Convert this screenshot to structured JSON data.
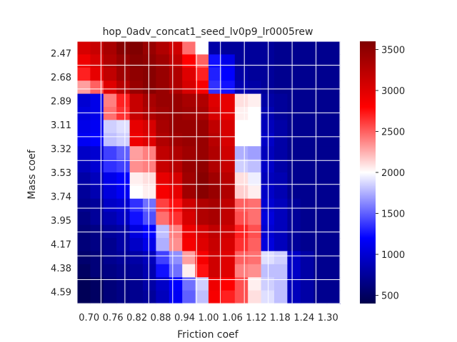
{
  "chart_data": {
    "type": "heatmap",
    "title": "hop_0adv_concat1_seed_lv0p9_lr0005rew",
    "xlabel": "Friction coef",
    "ylabel": "Mass coef",
    "x_ticks": [
      "0.70",
      "0.76",
      "0.82",
      "0.88",
      "0.94",
      "1.00",
      "1.06",
      "1.12",
      "1.18",
      "1.24",
      "1.30"
    ],
    "y_ticks": [
      "2.47",
      "2.68",
      "2.89",
      "3.11",
      "3.32",
      "3.53",
      "3.74",
      "3.95",
      "4.17",
      "4.38",
      "4.59"
    ],
    "colormap": "seismic",
    "colorbar_range": [
      400,
      3600
    ],
    "colorbar_ticks": [
      "500",
      "1000",
      "1500",
      "2000",
      "2500",
      "3000",
      "3500"
    ],
    "grid": true,
    "values": [
      [
        3050,
        3150,
        3350,
        3550,
        3600,
        3450,
        3300,
        3100,
        2450,
        2000,
        800,
        750,
        750,
        750,
        750,
        700,
        700,
        700,
        700,
        700
      ],
      [
        2900,
        3050,
        3300,
        3450,
        3550,
        3500,
        3400,
        3200,
        2800,
        2500,
        1250,
        1100,
        750,
        750,
        750,
        700,
        700,
        700,
        700,
        700
      ],
      [
        2700,
        2950,
        3200,
        3400,
        3500,
        3550,
        3450,
        3300,
        3000,
        2700,
        1300,
        1200,
        800,
        750,
        750,
        700,
        700,
        700,
        700,
        700
      ],
      [
        2300,
        2500,
        3000,
        3250,
        3450,
        3550,
        3450,
        3300,
        3050,
        2850,
        1350,
        1250,
        850,
        800,
        750,
        700,
        700,
        700,
        700,
        700
      ],
      [
        1000,
        1100,
        2400,
        2700,
        3150,
        3350,
        3450,
        3450,
        3350,
        3300,
        3000,
        2950,
        2100,
        2050,
        800,
        750,
        700,
        700,
        700,
        700
      ],
      [
        1050,
        1100,
        2450,
        2650,
        3150,
        3300,
        3400,
        3450,
        3400,
        3350,
        3050,
        2950,
        2050,
        2000,
        850,
        750,
        700,
        700,
        700,
        700
      ],
      [
        1100,
        1150,
        1850,
        1900,
        2950,
        3050,
        3350,
        3450,
        3450,
        3450,
        3200,
        3050,
        2000,
        2000,
        900,
        800,
        700,
        700,
        700,
        700
      ],
      [
        1150,
        1200,
        1800,
        1850,
        2900,
        3000,
        3300,
        3400,
        3450,
        3450,
        3250,
        3050,
        2000,
        2000,
        950,
        800,
        700,
        700,
        700,
        700
      ],
      [
        950,
        1000,
        1400,
        1500,
        2300,
        2400,
        3200,
        3300,
        3400,
        3450,
        3300,
        3100,
        1750,
        1700,
        900,
        800,
        700,
        700,
        700,
        700
      ],
      [
        900,
        1000,
        1350,
        1400,
        2350,
        2400,
        3150,
        3250,
        3450,
        3500,
        3300,
        3150,
        1850,
        1800,
        950,
        800,
        700,
        700,
        700,
        700
      ],
      [
        800,
        900,
        1100,
        1200,
        2050,
        2100,
        2950,
        3050,
        3400,
        3550,
        3400,
        3250,
        2100,
        1950,
        900,
        850,
        700,
        700,
        700,
        700
      ],
      [
        750,
        850,
        1050,
        1150,
        2000,
        2050,
        2850,
        2950,
        3400,
        3550,
        3450,
        3300,
        2150,
        2050,
        950,
        850,
        700,
        700,
        700,
        700
      ],
      [
        700,
        750,
        950,
        1000,
        1350,
        1550,
        2600,
        2750,
        3100,
        3300,
        3350,
        3200,
        2500,
        2450,
        1000,
        900,
        750,
        700,
        700,
        700
      ],
      [
        650,
        750,
        850,
        950,
        1250,
        1450,
        2450,
        2650,
        3050,
        3300,
        3350,
        3200,
        2550,
        2450,
        1050,
        900,
        750,
        700,
        700,
        700
      ],
      [
        600,
        650,
        750,
        800,
        1050,
        1200,
        1800,
        2400,
        2900,
        3050,
        3200,
        3100,
        2700,
        2550,
        1000,
        900,
        750,
        700,
        700,
        700
      ],
      [
        600,
        650,
        700,
        800,
        950,
        1100,
        1750,
        2350,
        2850,
        3000,
        3150,
        3050,
        2650,
        2500,
        1050,
        900,
        750,
        700,
        700,
        700
      ],
      [
        550,
        600,
        700,
        750,
        800,
        900,
        1400,
        1650,
        2300,
        2850,
        3100,
        3000,
        2500,
        2450,
        1900,
        1850,
        950,
        800,
        700,
        700
      ],
      [
        500,
        600,
        650,
        700,
        750,
        850,
        1250,
        1550,
        2050,
        2750,
        3100,
        3000,
        2400,
        2350,
        1800,
        1800,
        950,
        800,
        700,
        700
      ],
      [
        450,
        500,
        600,
        650,
        700,
        800,
        950,
        1200,
        1550,
        1850,
        2900,
        2800,
        2550,
        2050,
        1850,
        1800,
        900,
        800,
        700,
        700
      ],
      [
        450,
        500,
        600,
        650,
        700,
        750,
        900,
        1150,
        1500,
        1800,
        2850,
        2700,
        2550,
        2100,
        1900,
        1800,
        900,
        800,
        700,
        700
      ]
    ]
  }
}
